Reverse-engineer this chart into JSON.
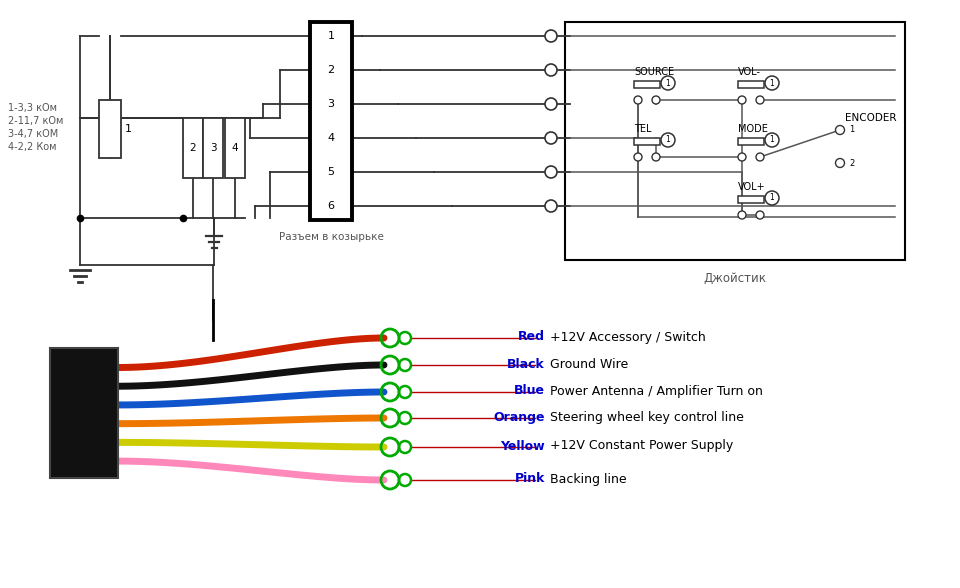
{
  "bg_color": "#ffffff",
  "resistor_labels": [
    "1-3,3 кОм",
    "2-11,7 кОм",
    "3-4,7 кОМ",
    "4-2,2 Ком"
  ],
  "connector_label": "Разъем в козырьке",
  "joystick_label": "Джойстик",
  "pin_labels": [
    "1",
    "2",
    "3",
    "4",
    "5",
    "6"
  ],
  "wire_colors": [
    "#cc2200",
    "#111111",
    "#1155cc",
    "#ee7700",
    "#cccc00",
    "#ff88bb"
  ],
  "wire_names": [
    "Red",
    "Black",
    "Blue",
    "Orange",
    "Yellow",
    "Pink"
  ],
  "wire_descs": [
    "+12V Accessory / Switch",
    "Ground Wire",
    "Power Antenna / Amplifier Turn on",
    "Steering wheel key control line",
    "+12V Constant Power Supply",
    "Backing line"
  ],
  "line_color": "#333333",
  "lw": 1.3,
  "circle_green": "#00aa00"
}
